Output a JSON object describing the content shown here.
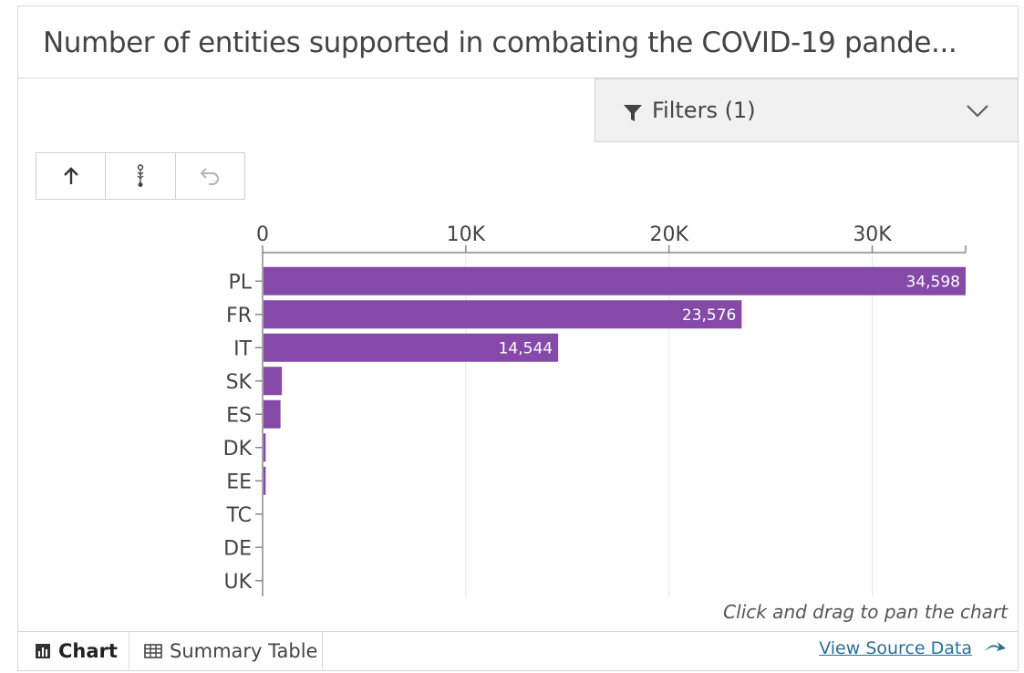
{
  "title": "Number of entities supported in combating the COVID-19 pande...",
  "filters": {
    "label": "Filters (1)",
    "icon": "funnel-icon",
    "chevron": "chevron-down-icon"
  },
  "toolbar": [
    {
      "name": "sort-ascending-button",
      "icon": "arrow-up-icon"
    },
    {
      "name": "sort-order-button",
      "icon": "sort-toggle-icon"
    },
    {
      "name": "undo-button",
      "icon": "undo-icon"
    }
  ],
  "hint": "Click and drag to pan the chart",
  "tabs": {
    "chart": "Chart",
    "table": "Summary Table"
  },
  "source_link": "View Source Data",
  "colors": {
    "bar": "#8549a8",
    "grid": "#e6e6e6",
    "axis": "#888888",
    "label": "#444444"
  },
  "chart_data": {
    "type": "bar",
    "orientation": "horizontal",
    "categories": [
      "PL",
      "FR",
      "IT",
      "SK",
      "ES",
      "DK",
      "EE",
      "TC",
      "DE",
      "UK"
    ],
    "values": [
      34598,
      23576,
      14544,
      950,
      880,
      150,
      150,
      30,
      20,
      10
    ],
    "data_labels": [
      "34,598",
      "23,576",
      "14,544",
      "",
      "",
      "",
      "",
      "",
      "",
      ""
    ],
    "xlim": [
      0,
      34598
    ],
    "ticks": [
      0,
      10000,
      20000,
      30000
    ],
    "tick_labels": [
      "0",
      "10K",
      "20K",
      "30K"
    ],
    "grid": true
  }
}
